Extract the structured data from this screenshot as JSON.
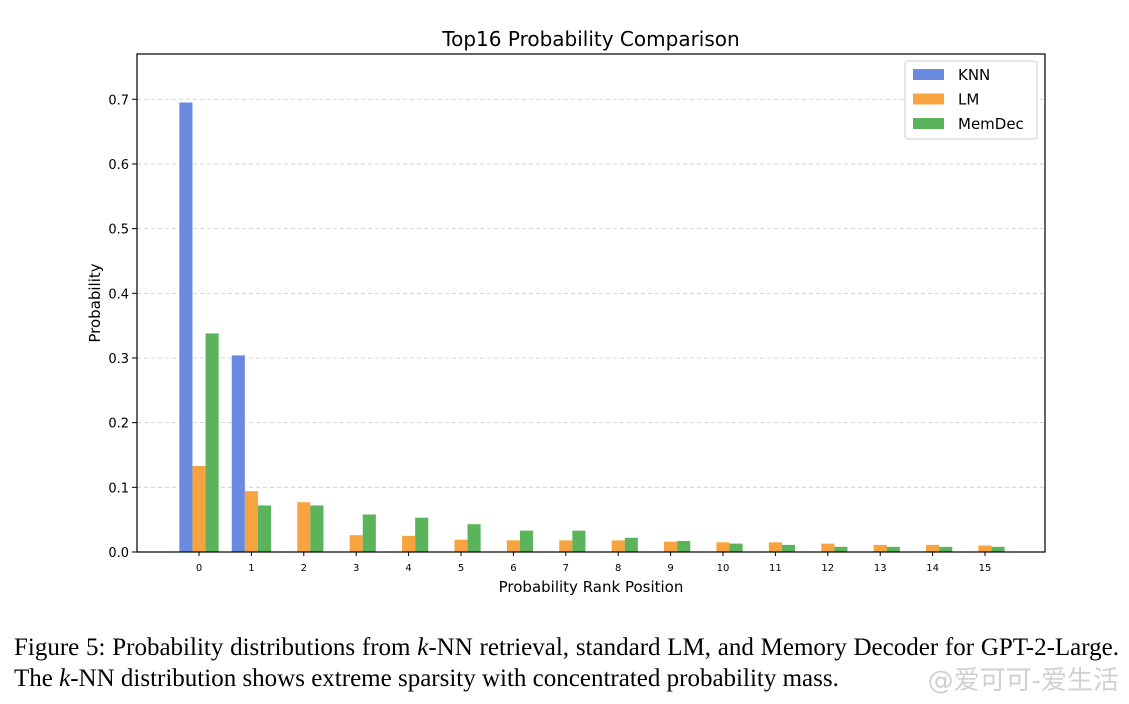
{
  "chart_data": {
    "type": "bar",
    "title": "Top16 Probability Comparison",
    "xlabel": "Probability Rank Position",
    "ylabel": "Probability",
    "categories": [
      "0",
      "1",
      "2",
      "3",
      "4",
      "5",
      "6",
      "7",
      "8",
      "9",
      "10",
      "11",
      "12",
      "13",
      "14",
      "15"
    ],
    "ylim": [
      0,
      0.77
    ],
    "yticks": [
      "0.0",
      "0.1",
      "0.2",
      "0.3",
      "0.4",
      "0.5",
      "0.6",
      "0.7"
    ],
    "grid": "horizontal dashed",
    "legend_position": "top-right",
    "series": [
      {
        "name": "KNN",
        "color": "#6a8ae0",
        "values": [
          0.695,
          0.304,
          0,
          0,
          0,
          0,
          0,
          0,
          0,
          0,
          0,
          0,
          0,
          0,
          0,
          0
        ]
      },
      {
        "name": "LM",
        "color": "#f7a440",
        "values": [
          0.133,
          0.094,
          0.077,
          0.026,
          0.025,
          0.019,
          0.018,
          0.018,
          0.018,
          0.016,
          0.015,
          0.015,
          0.013,
          0.011,
          0.011,
          0.01
        ]
      },
      {
        "name": "MemDec",
        "color": "#5bb45b",
        "values": [
          0.338,
          0.072,
          0.072,
          0.058,
          0.053,
          0.043,
          0.033,
          0.033,
          0.022,
          0.017,
          0.013,
          0.011,
          0.008,
          0.008,
          0.008,
          0.008
        ]
      }
    ]
  },
  "caption": {
    "prefix": "Figure 5: Probability distributions from ",
    "k1": "k",
    "mid1": "-NN retrieval, standard LM, and Memory Decoder for GPT-2-Large. The ",
    "k2": "k",
    "suffix": "-NN distribution shows extreme sparsity with concentrated probability mass."
  },
  "watermark": "@爱可可-爱生活"
}
